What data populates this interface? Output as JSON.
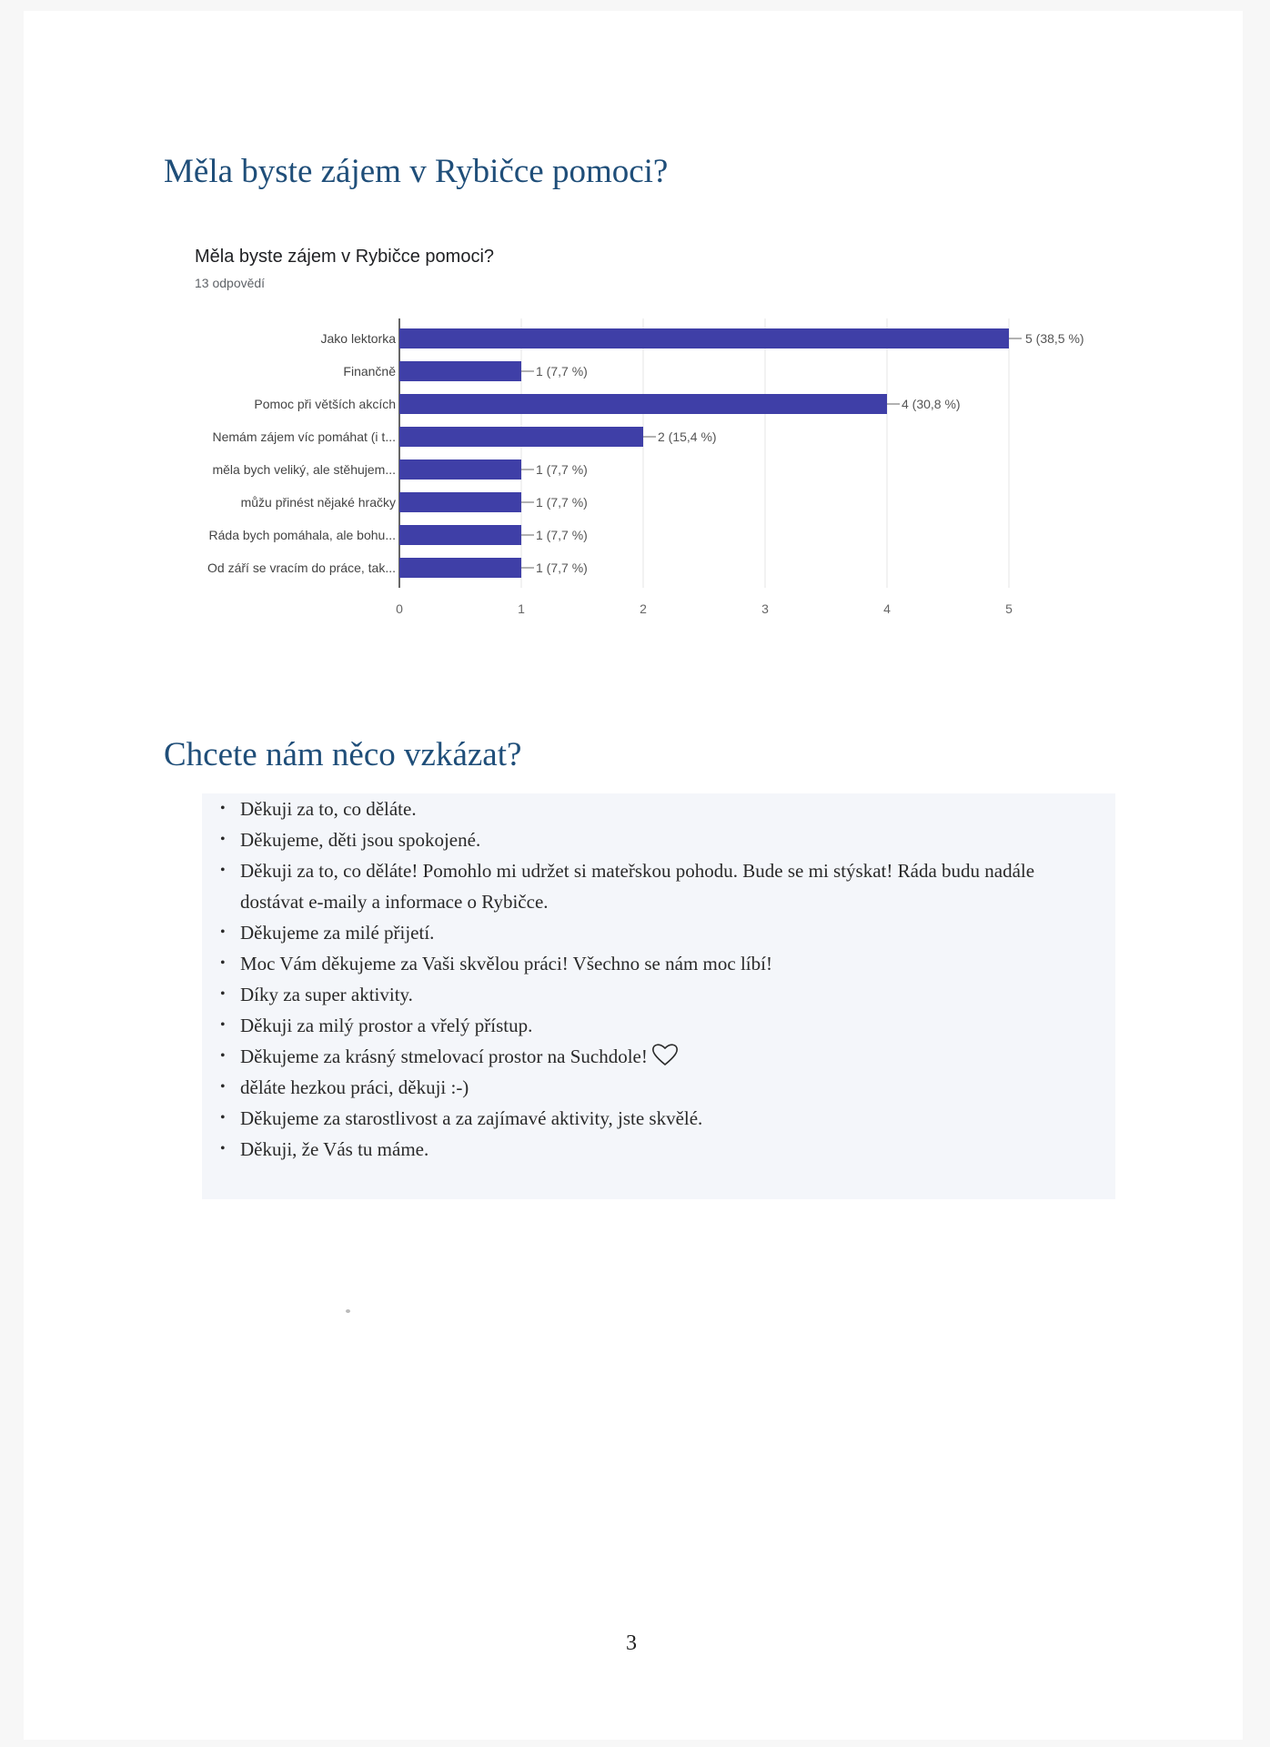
{
  "section1": {
    "heading": "Měla byste zájem v Rybičce pomoci?"
  },
  "chart": {
    "title": "Měla byste zájem v Rybičce pomoci?",
    "subtitle": "13 odpovědí"
  },
  "chart_data": {
    "type": "bar",
    "orientation": "horizontal",
    "categories": [
      "Jako lektorka",
      "Finančně",
      "Pomoc při větších akcích",
      "Nemám zájem víc pomáhat (i t...",
      "měla bych veliký, ale stěhujem...",
      "můžu přinést nějaké hračky",
      "Ráda bych pomáhala, ale bohu...",
      "Od září se vracím do práce, tak..."
    ],
    "values": [
      5,
      1,
      4,
      2,
      1,
      1,
      1,
      1
    ],
    "value_labels": [
      "5 (38,5 %)",
      "1 (7,7 %)",
      "4 (30,8 %)",
      "2 (15,4 %)",
      "1 (7,7 %)",
      "1 (7,7 %)",
      "1 (7,7 %)",
      "1 (7,7 %)"
    ],
    "xlim": [
      0,
      5
    ],
    "xticks": [
      "0",
      "1",
      "2",
      "3",
      "4",
      "5"
    ],
    "bar_color": "#3f3fa7",
    "grid": true
  },
  "section2": {
    "heading": "Chcete nám něco vzkázat?",
    "messages": [
      "Děkuji za to, co děláte.",
      "Děkujeme, děti jsou spokojené.",
      "Děkuji za to, co děláte! Pomohlo mi udržet si mateřskou pohodu. Bude se mi stýskat! Ráda budu nadále dostávat e-maily a informace o Rybičce.",
      "Děkujeme za milé přijetí.",
      "Moc Vám děkujeme za Vaši skvělou práci! Všechno se nám moc líbí!",
      "Díky za super aktivity.",
      "Děkuji za milý prostor a vřelý přístup.",
      "Děkujeme za krásný stmelovací prostor na Suchdole!",
      "děláte hezkou práci, děkuji :-)",
      "Děkujeme za starostlivost a za zajímavé aktivity, jste skvělé.",
      "Děkuji, že Vás tu máme."
    ],
    "bullet": "•",
    "heart_icon": "heart-outline-icon"
  },
  "footer": {
    "page_number": "3"
  }
}
